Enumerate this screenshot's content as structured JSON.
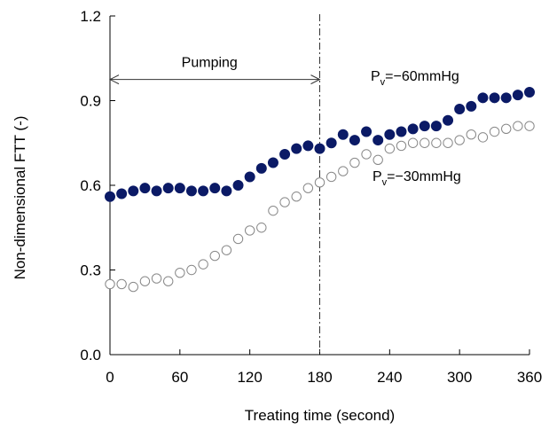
{
  "chart_data": {
    "type": "scatter",
    "title": "",
    "xlabel": "Treating time (second)",
    "ylabel": "Non-dimensional  FTT (-)",
    "xlim": [
      0,
      360
    ],
    "ylim": [
      0,
      1.2
    ],
    "xticks": [
      0,
      60,
      120,
      180,
      240,
      300,
      360
    ],
    "yticks": [
      0.0,
      0.3,
      0.6,
      0.9,
      1.2
    ],
    "ytick_labels": [
      "0.0",
      "0.3",
      "0.6",
      "0.9",
      "1.2"
    ],
    "grid": false,
    "legend": "none",
    "annotations": {
      "pumping_label": "Pumping",
      "pumping_range": [
        0,
        180
      ],
      "pumping_y": 0.975,
      "vline_x": 180,
      "series1_label_main": "P",
      "series1_label_sub": "v",
      "series1_label_rest": "=−60mmHg",
      "series2_label_main": "P",
      "series2_label_sub": "v",
      "series2_label_rest": "=−30mmHg"
    },
    "x": [
      0,
      10,
      20,
      30,
      40,
      50,
      60,
      70,
      80,
      90,
      100,
      110,
      120,
      130,
      140,
      150,
      160,
      170,
      180,
      190,
      200,
      210,
      220,
      230,
      240,
      250,
      260,
      270,
      280,
      290,
      300,
      310,
      320,
      330,
      340,
      350,
      360
    ],
    "series": [
      {
        "marker": "filled-circle",
        "color": "#0b1a66",
        "values": [
          0.56,
          0.57,
          0.58,
          0.59,
          0.58,
          0.59,
          0.59,
          0.58,
          0.58,
          0.59,
          0.58,
          0.6,
          0.63,
          0.66,
          0.68,
          0.71,
          0.73,
          0.74,
          0.73,
          0.75,
          0.78,
          0.76,
          0.79,
          0.76,
          0.78,
          0.79,
          0.8,
          0.81,
          0.81,
          0.83,
          0.87,
          0.88,
          0.91,
          0.91,
          0.91,
          0.92,
          0.93
        ]
      },
      {
        "marker": "open-circle",
        "color": "#888888",
        "values": [
          0.25,
          0.25,
          0.24,
          0.26,
          0.27,
          0.26,
          0.29,
          0.3,
          0.32,
          0.35,
          0.37,
          0.41,
          0.44,
          0.45,
          0.51,
          0.54,
          0.56,
          0.59,
          0.61,
          0.63,
          0.65,
          0.68,
          0.71,
          0.69,
          0.73,
          0.74,
          0.75,
          0.75,
          0.75,
          0.75,
          0.76,
          0.78,
          0.77,
          0.79,
          0.8,
          0.81,
          0.81
        ]
      }
    ]
  }
}
